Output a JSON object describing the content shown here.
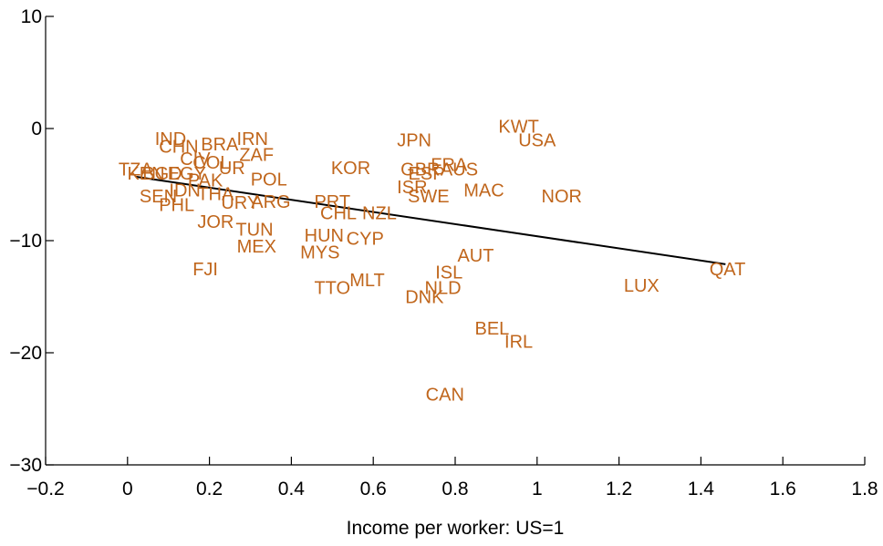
{
  "chart_data": {
    "type": "scatter",
    "title": "",
    "xlabel": "Income per worker: US=1",
    "ylabel": "",
    "xlim": [
      -0.2,
      1.8
    ],
    "ylim": [
      -30,
      10
    ],
    "xticks": [
      "−0.2",
      "0",
      "0.2",
      "0.4",
      "0.6",
      "0.8",
      "1",
      "1.2",
      "1.4",
      "1.6",
      "1.8"
    ],
    "yticks": [
      "10",
      "0",
      "−10",
      "−20",
      "−30"
    ],
    "label_color": "#c0661c",
    "line_color": "#000000",
    "fit_line": {
      "x": [
        0.02,
        1.46
      ],
      "y": [
        -4.3,
        -12.1
      ]
    },
    "points": [
      {
        "label": "IND",
        "x": 0.105,
        "y": -0.9
      },
      {
        "label": "CHN",
        "x": 0.125,
        "y": -1.6
      },
      {
        "label": "BRA",
        "x": 0.225,
        "y": -1.4
      },
      {
        "label": "IRN",
        "x": 0.305,
        "y": -0.9
      },
      {
        "label": "ZAF",
        "x": 0.315,
        "y": -2.3
      },
      {
        "label": "CIV",
        "x": 0.165,
        "y": -2.7
      },
      {
        "label": "COL",
        "x": 0.205,
        "y": -3.0
      },
      {
        "label": "UR",
        "x": 0.255,
        "y": -3.5
      },
      {
        "label": "POL",
        "x": 0.345,
        "y": -4.5
      },
      {
        "label": "TZA",
        "x": 0.02,
        "y": -3.6
      },
      {
        "label": "KEN",
        "x": 0.045,
        "y": -4.0
      },
      {
        "label": "BGD",
        "x": 0.085,
        "y": -4.0
      },
      {
        "label": "EGY",
        "x": 0.145,
        "y": -4.0
      },
      {
        "label": "PAK",
        "x": 0.19,
        "y": -4.6
      },
      {
        "label": "SEN",
        "x": 0.075,
        "y": -6.0
      },
      {
        "label": "IDN",
        "x": 0.14,
        "y": -5.5
      },
      {
        "label": "THA",
        "x": 0.215,
        "y": -5.8
      },
      {
        "label": "URY",
        "x": 0.275,
        "y": -6.6
      },
      {
        "label": "ARG",
        "x": 0.35,
        "y": -6.5
      },
      {
        "label": "PHL",
        "x": 0.12,
        "y": -6.8
      },
      {
        "label": "JOR",
        "x": 0.215,
        "y": -8.3
      },
      {
        "label": "TUN",
        "x": 0.31,
        "y": -9.0
      },
      {
        "label": "MEX",
        "x": 0.315,
        "y": -10.5
      },
      {
        "label": "FJI",
        "x": 0.19,
        "y": -12.5
      },
      {
        "label": "KOR",
        "x": 0.545,
        "y": -3.5
      },
      {
        "label": "PRT",
        "x": 0.5,
        "y": -6.5
      },
      {
        "label": "CHL",
        "x": 0.515,
        "y": -7.5
      },
      {
        "label": "NZL",
        "x": 0.615,
        "y": -7.5
      },
      {
        "label": "HUN",
        "x": 0.48,
        "y": -9.5
      },
      {
        "label": "CYP",
        "x": 0.58,
        "y": -9.8
      },
      {
        "label": "MYS",
        "x": 0.47,
        "y": -11.0
      },
      {
        "label": "MLT",
        "x": 0.585,
        "y": -13.5
      },
      {
        "label": "TTO",
        "x": 0.5,
        "y": -14.2
      },
      {
        "label": "JPN",
        "x": 0.7,
        "y": -1.0
      },
      {
        "label": "FRA",
        "x": 0.785,
        "y": -3.2
      },
      {
        "label": "GBR",
        "x": 0.715,
        "y": -3.6
      },
      {
        "label": "ESP",
        "x": 0.73,
        "y": -4.0
      },
      {
        "label": "AUS",
        "x": 0.81,
        "y": -3.6
      },
      {
        "label": "ISR",
        "x": 0.695,
        "y": -5.2
      },
      {
        "label": "SWE",
        "x": 0.735,
        "y": -6.0
      },
      {
        "label": "MAC",
        "x": 0.87,
        "y": -5.5
      },
      {
        "label": "KWT",
        "x": 0.955,
        "y": 0.2
      },
      {
        "label": "USA",
        "x": 1.0,
        "y": -1.0
      },
      {
        "label": "NOR",
        "x": 1.06,
        "y": -6.0
      },
      {
        "label": "AUT",
        "x": 0.85,
        "y": -11.3
      },
      {
        "label": "ISL",
        "x": 0.785,
        "y": -12.8
      },
      {
        "label": "NLD",
        "x": 0.77,
        "y": -14.2
      },
      {
        "label": "DNK",
        "x": 0.725,
        "y": -15.0
      },
      {
        "label": "BEL",
        "x": 0.89,
        "y": -17.8
      },
      {
        "label": "IRL",
        "x": 0.955,
        "y": -19.0
      },
      {
        "label": "CAN",
        "x": 0.775,
        "y": -23.7
      },
      {
        "label": "LUX",
        "x": 1.255,
        "y": -14.0
      },
      {
        "label": "QAT",
        "x": 1.465,
        "y": -12.5
      }
    ]
  }
}
